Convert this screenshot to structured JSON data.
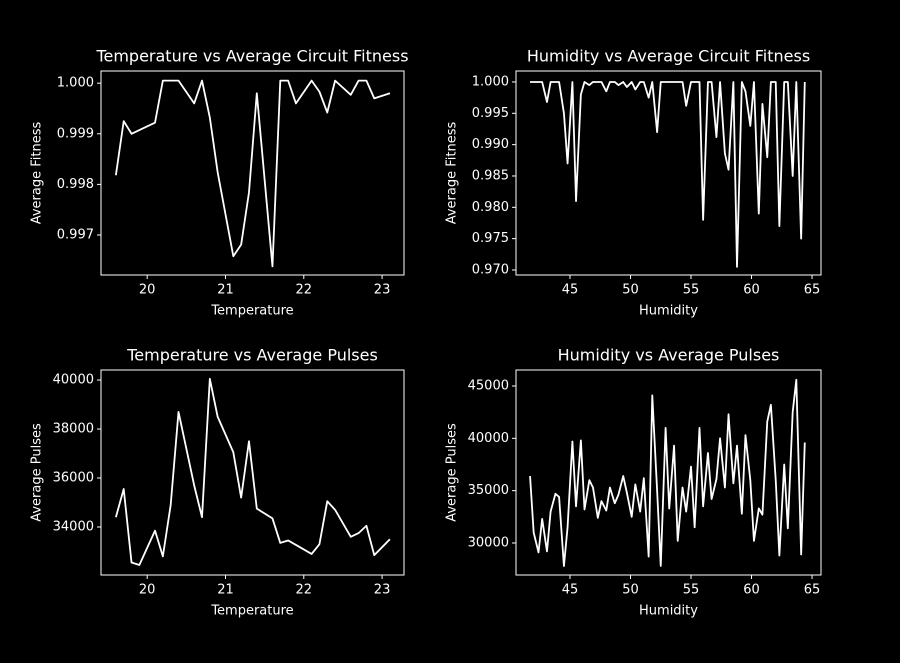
{
  "chart_data": [
    {
      "type": "line",
      "title": "Temperature vs Average Circuit Fitness",
      "x_label": "Temperature",
      "y_label": "Average Fitness",
      "color": "#ffffff",
      "x": [
        19.6,
        19.7,
        19.8,
        20.1,
        20.2,
        20.4,
        20.6,
        20.7,
        20.8,
        20.9,
        21.1,
        21.2,
        21.3,
        21.4,
        21.6,
        21.7,
        21.8,
        21.9,
        22.1,
        22.2,
        22.3,
        22.4,
        22.6,
        22.7,
        22.8,
        22.9,
        23.1
      ],
      "values": [
        0.99818,
        0.99925,
        0.999,
        0.99922,
        1.00005,
        1.00005,
        0.9996,
        1.00005,
        0.99932,
        0.99824,
        0.99658,
        0.99681,
        0.99784,
        0.9998,
        0.99638,
        1.00005,
        1.00005,
        0.9996,
        1.00005,
        0.99983,
        0.99942,
        1.00005,
        0.99977,
        1.00005,
        1.00005,
        0.9997,
        0.9998
      ],
      "xlim": [
        19.41,
        23.28
      ],
      "ylim": [
        0.99621,
        1.00024
      ],
      "xticks": [
        20,
        21,
        22,
        23
      ],
      "yticks": [
        {
          "value": 0.997,
          "label": "0.997"
        },
        {
          "value": 0.998,
          "label": "0.998"
        },
        {
          "value": 0.999,
          "label": "0.999"
        },
        {
          "value": 1,
          "label": "1.000"
        }
      ]
    },
    {
      "type": "line",
      "title": "Humidity vs Average Circuit Fitness",
      "x_label": "Humidity",
      "y_label": "Average Fitness",
      "color": "#ffffff",
      "x": [
        41.7,
        42.0,
        42.4,
        42.7,
        43.1,
        43.4,
        43.8,
        44.1,
        44.5,
        44.8,
        45.2,
        45.5,
        45.9,
        46.2,
        46.6,
        46.9,
        47.3,
        47.6,
        48,
        48.3,
        48.7,
        49.0,
        49.4,
        49.7,
        50.1,
        50.4,
        50.8,
        51.1,
        51.5,
        51.8,
        52.2,
        52.5,
        52.9,
        53.2,
        53.6,
        53.9,
        54.3,
        54.6,
        55.0,
        55.3,
        55.7,
        56.0,
        56.4,
        56.7,
        57.1,
        57.4,
        57.8,
        58.1,
        58.5,
        58.8,
        59.2,
        59.5,
        59.9,
        60.2,
        60.6,
        60.9,
        61.3,
        61.6,
        62.0,
        62.3,
        62.7,
        63.0,
        63.4,
        63.7,
        64.1,
        64.4
      ],
      "values": [
        1,
        1,
        1,
        1,
        0.9968,
        1,
        1,
        1,
        0.995,
        0.987,
        1,
        0.981,
        0.998,
        1,
        0.9995,
        1,
        1,
        1,
        0.9985,
        1,
        1,
        0.9995,
        1,
        0.9992,
        1,
        0.9988,
        1,
        1,
        0.9975,
        1,
        0.992,
        1,
        1,
        1,
        1,
        1,
        1,
        0.9962,
        1,
        1,
        1,
        0.978,
        1,
        1,
        0.9912,
        1,
        0.9886,
        0.986,
        1,
        0.9705,
        1,
        0.9985,
        0.993,
        1,
        0.979,
        0.9965,
        0.988,
        1,
        1,
        0.977,
        1,
        1,
        0.985,
        1,
        0.975,
        1
      ],
      "xlim": [
        40.54,
        65.74
      ],
      "ylim": [
        0.9692,
        1.00175
      ],
      "xticks": [
        45,
        50,
        55,
        60,
        65
      ],
      "yticks": [
        {
          "value": 0.97,
          "label": "0.970"
        },
        {
          "value": 0.975,
          "label": "0.975"
        },
        {
          "value": 0.98,
          "label": "0.980"
        },
        {
          "value": 0.985,
          "label": "0.985"
        },
        {
          "value": 0.99,
          "label": "0.990"
        },
        {
          "value": 0.995,
          "label": "0.995"
        },
        {
          "value": 1,
          "label": "1.000"
        }
      ]
    },
    {
      "type": "line",
      "title": "Temperature vs Average Pulses",
      "x_label": "Temperature",
      "y_label": "Average Pulses",
      "color": "#ffffff",
      "x": [
        19.6,
        19.7,
        19.8,
        19.9,
        20.1,
        20.2,
        20.3,
        20.4,
        20.6,
        20.7,
        20.8,
        20.9,
        21.1,
        21.2,
        21.3,
        21.4,
        21.6,
        21.7,
        21.8,
        22.1,
        22.2,
        22.3,
        22.4,
        22.6,
        22.7,
        22.8,
        22.9,
        23.1
      ],
      "values": [
        34400,
        35550,
        32550,
        32450,
        33850,
        32800,
        34900,
        38700,
        35700,
        34400,
        40050,
        38500,
        37050,
        35200,
        37500,
        34750,
        34350,
        33350,
        33450,
        32900,
        33300,
        35050,
        34700,
        33600,
        33750,
        34050,
        32850,
        33500
      ],
      "xlim": [
        19.41,
        23.28
      ],
      "ylim": [
        32040,
        40410
      ],
      "xticks": [
        20,
        21,
        22,
        23
      ],
      "yticks": [
        34000,
        36000,
        38000,
        40000
      ]
    },
    {
      "type": "line",
      "title": "Humidity vs Average Pulses",
      "x_label": "Humidity",
      "y_label": "Average Pulses",
      "color": "#ffffff",
      "x": [
        41.7,
        42.0,
        42.4,
        42.7,
        43.1,
        43.4,
        43.8,
        44.1,
        44.5,
        44.8,
        45.2,
        45.5,
        45.9,
        46.2,
        46.6,
        46.9,
        47.3,
        47.6,
        48,
        48.3,
        48.7,
        49.0,
        49.4,
        49.7,
        50.1,
        50.4,
        50.8,
        51.1,
        51.5,
        51.8,
        52.2,
        52.5,
        52.9,
        53.2,
        53.6,
        53.9,
        54.3,
        54.6,
        55.0,
        55.3,
        55.7,
        56.0,
        56.4,
        56.7,
        57.1,
        57.4,
        57.8,
        58.1,
        58.5,
        58.8,
        59.2,
        59.5,
        59.9,
        60.2,
        60.6,
        60.9,
        61.3,
        61.6,
        62.0,
        62.3,
        62.7,
        63.0,
        63.4,
        63.7,
        64.1,
        64.4
      ],
      "values": [
        36400,
        31000,
        29100,
        32300,
        29200,
        33000,
        34700,
        34400,
        27800,
        31500,
        39700,
        33500,
        39800,
        33200,
        36000,
        35300,
        32400,
        34000,
        33100,
        35300,
        33800,
        34600,
        36400,
        34800,
        32500,
        35600,
        33000,
        36200,
        28700,
        44100,
        35000,
        27800,
        41000,
        33300,
        39300,
        30200,
        35300,
        33000,
        37300,
        31500,
        41000,
        33500,
        38600,
        34200,
        36100,
        40000,
        35300,
        42300,
        35700,
        39300,
        32800,
        40300,
        36000,
        30200,
        33300,
        32700,
        41600,
        43200,
        36000,
        28800,
        37500,
        31400,
        42500,
        45600,
        28900,
        39600
      ],
      "xlim": [
        40.54,
        65.74
      ],
      "ylim": [
        26940,
        46530
      ],
      "xticks": [
        45,
        50,
        55,
        60,
        65
      ],
      "yticks": [
        30000,
        35000,
        40000,
        45000
      ]
    }
  ]
}
